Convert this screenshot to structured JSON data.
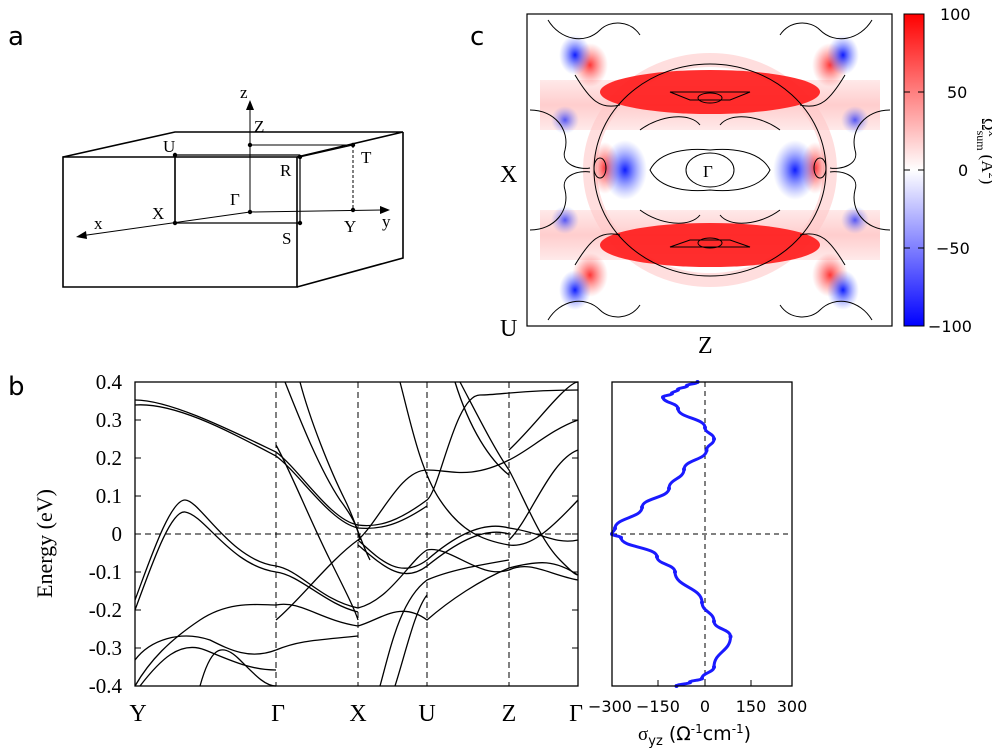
{
  "panel_letters": {
    "a": "a",
    "b": "b",
    "c": "c"
  },
  "brillouin_zone": {
    "axes": {
      "x": "x",
      "y": "y",
      "z": "z"
    },
    "points": {
      "U": "U",
      "Z": "Z",
      "R": "R",
      "T": "T",
      "X": "X",
      "Gamma": "Γ",
      "S": "S",
      "Y": "Y"
    }
  },
  "berry_map": {
    "left_labels": {
      "top": "X",
      "bottom": "U"
    },
    "bottom_label": "Z",
    "center_label": "Γ",
    "colorbar": {
      "ticks": [
        "100",
        "50",
        "0",
        "−50",
        "−100"
      ],
      "label": {
        "omega": "Ω",
        "sup": "x",
        "sub": "sum",
        "unit_open": "(Å",
        "unit_sup": "2",
        "unit_close": ")"
      },
      "colors": {
        "high": "#ff0000",
        "mid": "#ffffff",
        "low": "#0000ff"
      }
    }
  },
  "band_structure": {
    "ylabel": "Energy (eV)",
    "y_ticks": [
      "0.4",
      "0.3",
      "0.2",
      "0.1",
      "0",
      "-0.1",
      "-0.2",
      "-0.3",
      "-0.4"
    ],
    "k_labels": [
      "Y",
      "Γ",
      "X",
      "U",
      "Z",
      "Γ"
    ]
  },
  "conductivity": {
    "x_ticks": [
      "−300",
      "−150",
      "0",
      "150",
      "300"
    ],
    "xlabel": {
      "sigma": "σ",
      "sub": "yz",
      "unit": " (Ω",
      "sup1": "-1",
      "cm": "cm",
      "sup2": "-1",
      "close": ")"
    },
    "line_color": "#1a1aff"
  },
  "chart_data": {
    "type": "line",
    "title": "",
    "xlabel": "σyz (Ω-1cm-1)",
    "ylabel": "Energy (eV)",
    "xlim": [
      -300,
      300
    ],
    "ylim": [
      -0.4,
      0.4
    ],
    "series": [
      {
        "x": [
          -85,
          -40,
          0,
          40,
          95,
          40,
          0,
          -90,
          -150,
          -270,
          -300,
          -290,
          -200,
          -110,
          -60,
          15,
          40,
          10,
          -80,
          -130,
          -100,
          -80,
          -50,
          -15
        ],
        "y": [
          -0.4,
          -0.39,
          -0.38,
          -0.35,
          -0.27,
          -0.23,
          -0.18,
          -0.1,
          -0.06,
          -0.01,
          0.0,
          0.015,
          0.07,
          0.12,
          0.17,
          0.22,
          0.25,
          0.28,
          0.33,
          0.36,
          0.37,
          0.38,
          0.39,
          0.4
        ]
      }
    ]
  }
}
